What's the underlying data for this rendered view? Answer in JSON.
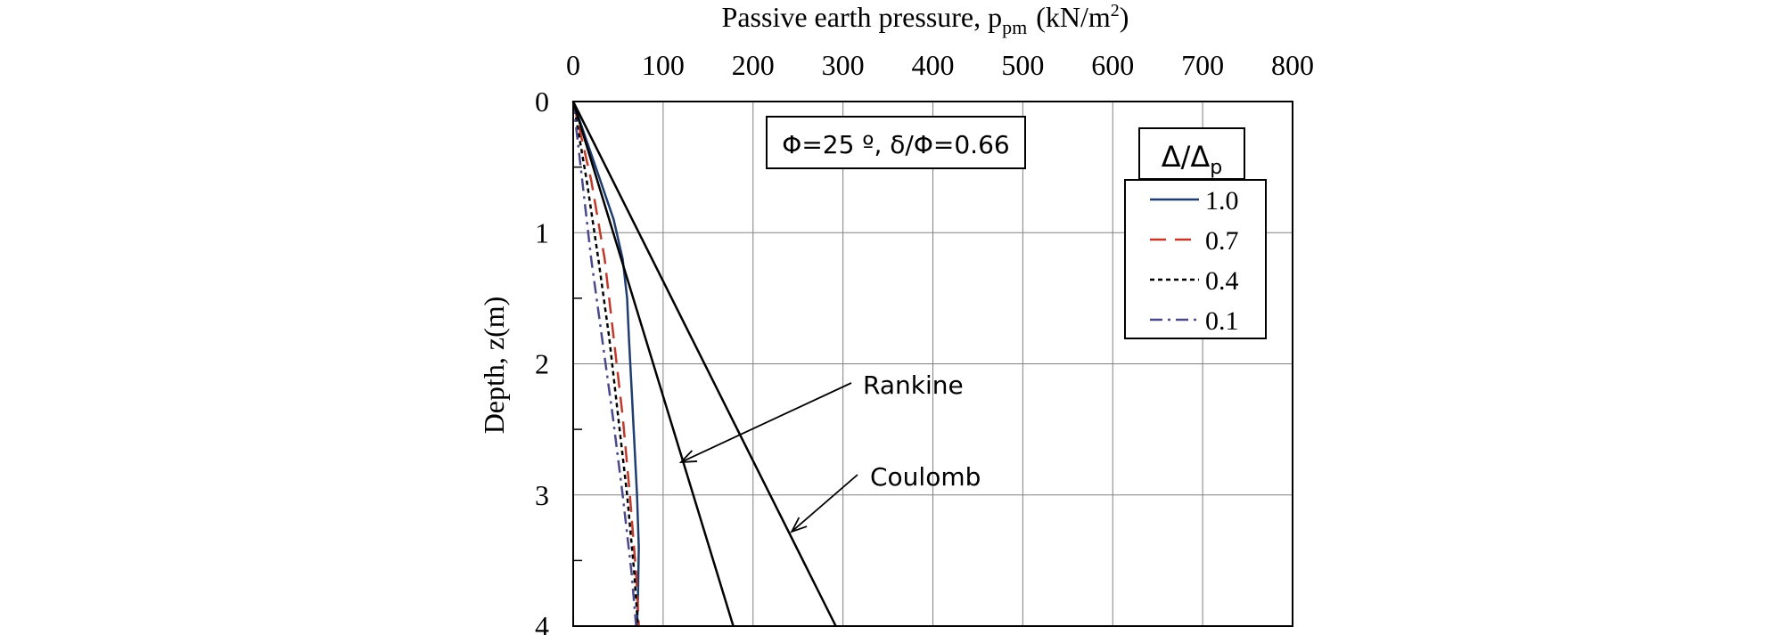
{
  "chart_data": {
    "type": "line",
    "xlabel_main": "Passive earth pressure, p",
    "xlabel_sub": "pm",
    "xlabel_unit": "(kN/m",
    "xlabel_sup": "2",
    "xlabel_close": ")",
    "ylabel": "Depth, z(m)",
    "xlim": [
      0,
      800
    ],
    "ylim": [
      0,
      4
    ],
    "x_ticks": [
      "0",
      "100",
      "200",
      "300",
      "400",
      "500",
      "600",
      "700",
      "800"
    ],
    "y_ticks": [
      "0",
      "1",
      "2",
      "3",
      "4"
    ],
    "grid": true,
    "x_axis_position": "top",
    "y_axis_inverted": true,
    "annotation_box": "Φ=25 º, δ/Φ=0.66",
    "legend": {
      "title_main": "Δ/Δ",
      "title_sub": "p",
      "placement": "top-right"
    },
    "series": [
      {
        "name": "1.0",
        "color": "#1f3d6e",
        "dash": "solid",
        "points": [
          [
            0,
            0
          ],
          [
            15,
            0.3
          ],
          [
            30,
            0.6
          ],
          [
            45,
            0.9
          ],
          [
            55,
            1.2
          ],
          [
            60,
            1.5
          ],
          [
            62,
            1.8
          ],
          [
            65,
            2.2
          ],
          [
            68,
            2.6
          ],
          [
            71,
            3.0
          ],
          [
            73,
            3.4
          ],
          [
            72,
            3.8
          ],
          [
            71,
            4.0
          ]
        ]
      },
      {
        "name": "0.7",
        "color": "#c0392b",
        "dash": "dashed",
        "points": [
          [
            0,
            0
          ],
          [
            20,
            0.6
          ],
          [
            35,
            1.2
          ],
          [
            45,
            1.8
          ],
          [
            55,
            2.4
          ],
          [
            63,
            3.0
          ],
          [
            70,
            3.6
          ],
          [
            73,
            4.0
          ]
        ]
      },
      {
        "name": "0.4",
        "color": "#000000",
        "dash": "dotted",
        "points": [
          [
            0,
            0
          ],
          [
            15,
            0.6
          ],
          [
            28,
            1.2
          ],
          [
            40,
            1.8
          ],
          [
            50,
            2.4
          ],
          [
            60,
            3.0
          ],
          [
            68,
            3.6
          ],
          [
            72,
            4.0
          ]
        ]
      },
      {
        "name": "0.1",
        "color": "#4a4a8a",
        "dash": "dashdot",
        "points": [
          [
            0,
            0
          ],
          [
            10,
            0.6
          ],
          [
            20,
            1.2
          ],
          [
            32,
            1.8
          ],
          [
            44,
            2.4
          ],
          [
            55,
            3.0
          ],
          [
            65,
            3.6
          ],
          [
            70,
            4.0
          ]
        ]
      },
      {
        "name": "Rankine",
        "color": "#000000",
        "dash": "solid",
        "points": [
          [
            0,
            0
          ],
          [
            178,
            4.0
          ]
        ]
      },
      {
        "name": "Coulomb",
        "color": "#000000",
        "dash": "solid",
        "points": [
          [
            0,
            0
          ],
          [
            292,
            4.0
          ]
        ]
      }
    ],
    "annotations": [
      {
        "text": "Rankine",
        "target": [
          120,
          2.75
        ]
      },
      {
        "text": "Coulomb",
        "target": [
          243,
          3.28
        ]
      }
    ]
  }
}
